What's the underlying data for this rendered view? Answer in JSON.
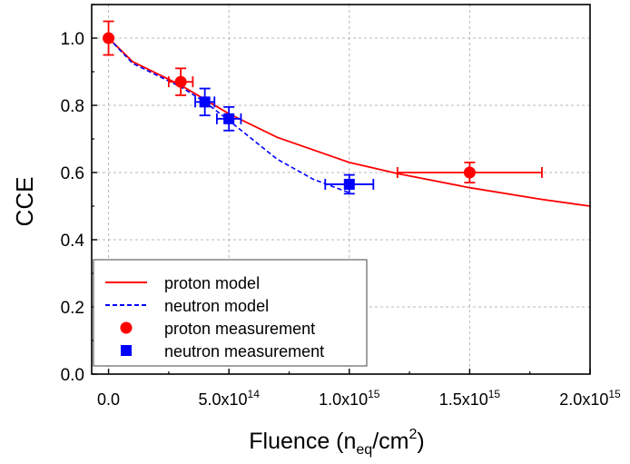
{
  "chart_data": {
    "type": "scatter",
    "xlabel": "Fluence (n",
    "xlabel_sub": "eq",
    "xlabel_mid": "/cm",
    "xlabel_sup": "2",
    "xlabel_end": ")",
    "ylabel": "CCE",
    "xlim": [
      -70000000000000,
      2000000000000000
    ],
    "ylim": [
      0,
      1.1
    ],
    "grid": true,
    "legend_position": "bottom-left",
    "xticks": [
      {
        "value": 0,
        "mant": "0.0",
        "exp": ""
      },
      {
        "value": 500000000000000,
        "mant": "5.0x10",
        "exp": "14"
      },
      {
        "value": 1000000000000000,
        "mant": "1.0x10",
        "exp": "15"
      },
      {
        "value": 1500000000000000,
        "mant": "1.5x10",
        "exp": "15"
      },
      {
        "value": 2000000000000000,
        "mant": "2.0x10",
        "exp": "15"
      }
    ],
    "yticks": [
      {
        "value": 0.0,
        "label": "0.0"
      },
      {
        "value": 0.2,
        "label": "0.2"
      },
      {
        "value": 0.4,
        "label": "0.4"
      },
      {
        "value": 0.6,
        "label": "0.6"
      },
      {
        "value": 0.8,
        "label": "0.8"
      },
      {
        "value": 1.0,
        "label": "1.0"
      }
    ],
    "series": [
      {
        "name": "proton model",
        "kind": "line",
        "style": "solid",
        "color": "#ff0000",
        "x": [
          0,
          100000000000000,
          300000000000000,
          500000000000000,
          700000000000000,
          1000000000000000,
          1200000000000000,
          1500000000000000,
          1800000000000000,
          2000000000000000
        ],
        "y": [
          1.0,
          0.93,
          0.86,
          0.775,
          0.705,
          0.63,
          0.597,
          0.555,
          0.52,
          0.5
        ]
      },
      {
        "name": "neutron model",
        "kind": "line",
        "style": "dashed",
        "color": "#0000ff",
        "x": [
          0,
          100000000000000,
          300000000000000,
          400000000000000,
          500000000000000,
          700000000000000,
          850000000000000,
          1000000000000000
        ],
        "y": [
          1.0,
          0.925,
          0.855,
          0.81,
          0.755,
          0.64,
          0.58,
          0.54
        ]
      },
      {
        "name": "proton measurement",
        "kind": "points",
        "marker": "circle",
        "color": "#ff0000",
        "points": [
          {
            "x": 0,
            "y": 1.0,
            "xerr": 0,
            "yerr": 0.05
          },
          {
            "x": 300000000000000,
            "y": 0.87,
            "xerr": 50000000000000,
            "yerr": 0.04
          },
          {
            "x": 1500000000000000,
            "y": 0.6,
            "xerr": 300000000000000,
            "yerr": 0.03
          }
        ]
      },
      {
        "name": "neutron measurement",
        "kind": "points",
        "marker": "square",
        "color": "#0000ff",
        "points": [
          {
            "x": 400000000000000,
            "y": 0.81,
            "xerr": 40000000000000,
            "yerr": 0.04
          },
          {
            "x": 500000000000000,
            "y": 0.76,
            "xerr": 50000000000000,
            "yerr": 0.035
          },
          {
            "x": 1000000000000000,
            "y": 0.565,
            "xerr": 100000000000000,
            "yerr": 0.028
          }
        ]
      }
    ]
  }
}
